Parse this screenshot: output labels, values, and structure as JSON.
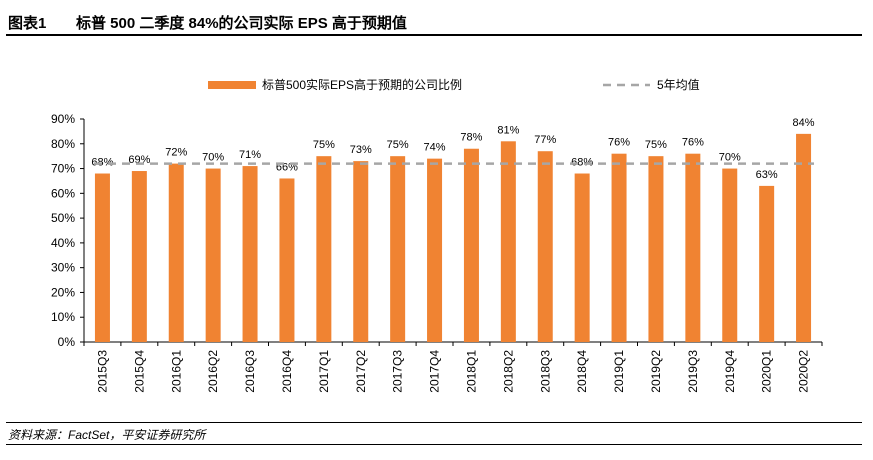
{
  "figure": {
    "number": "图表1",
    "title": "标普 500 二季度 84%的公司实际 EPS 高于预期值",
    "source": "资料来源：FactSet，平安证券研究所"
  },
  "colors": {
    "bar": "#F08332",
    "avg_line": "#A6A6A6",
    "axis": "#000000"
  },
  "chart_data": {
    "type": "bar",
    "categories": [
      "2015Q3",
      "2015Q4",
      "2016Q1",
      "2016Q2",
      "2016Q3",
      "2016Q4",
      "2017Q1",
      "2017Q2",
      "2017Q3",
      "2017Q4",
      "2018Q1",
      "2018Q2",
      "2018Q3",
      "2018Q4",
      "2019Q1",
      "2019Q2",
      "2019Q3",
      "2019Q4",
      "2020Q1",
      "2020Q2"
    ],
    "series": [
      {
        "name": "标普500实际EPS高于预期的公司比例",
        "type": "bar",
        "values": [
          68,
          69,
          72,
          70,
          71,
          66,
          75,
          73,
          75,
          74,
          78,
          81,
          77,
          68,
          76,
          75,
          76,
          70,
          63,
          84
        ],
        "labels": [
          "68%",
          "69%",
          "72%",
          "70%",
          "71%",
          "66%",
          "75%",
          "73%",
          "75%",
          "74%",
          "78%",
          "81%",
          "77%",
          "68%",
          "76%",
          "75%",
          "76%",
          "70%",
          "63%",
          "84%"
        ]
      },
      {
        "name": "5年均值",
        "type": "line",
        "style": "dashed",
        "value": 72
      }
    ],
    "yticks": [
      "0%",
      "10%",
      "20%",
      "30%",
      "40%",
      "50%",
      "60%",
      "70%",
      "80%",
      "90%"
    ],
    "ylim": [
      0,
      90
    ],
    "legend_position": "top-center",
    "grid": false
  }
}
